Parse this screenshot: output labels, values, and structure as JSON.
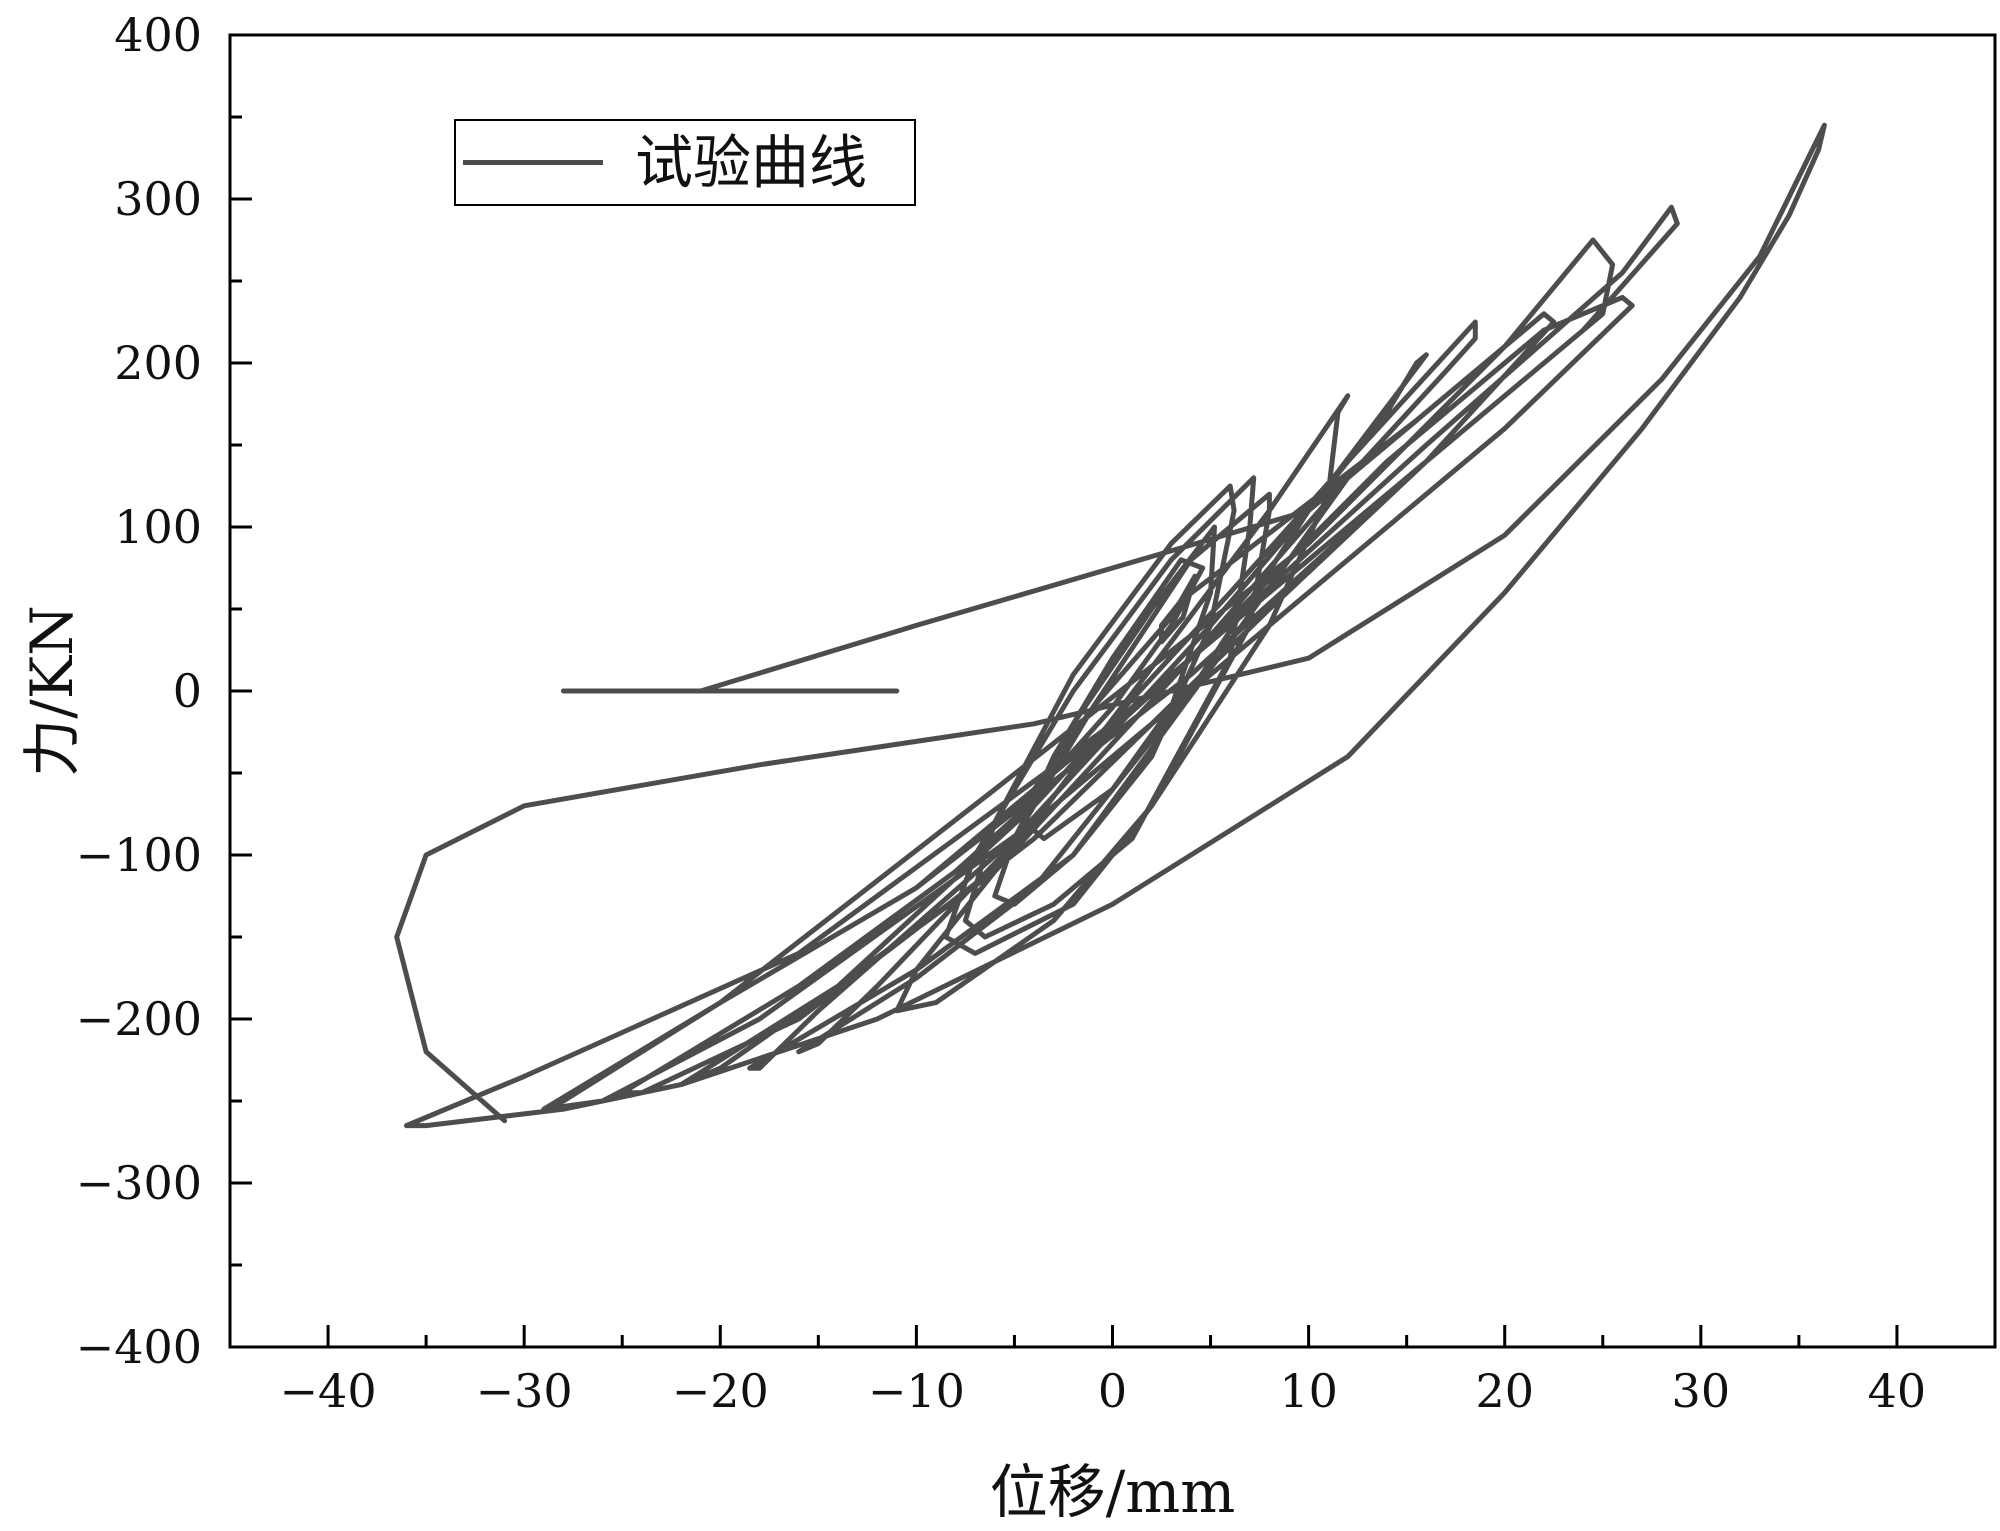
{
  "chart_data": {
    "type": "line",
    "title": "",
    "xlabel": "位移/mm",
    "ylabel": "力/KN",
    "xlim": [
      -45,
      45
    ],
    "ylim": [
      -400,
      400
    ],
    "x_ticks": [
      -40,
      -30,
      -20,
      -10,
      0,
      10,
      20,
      30,
      40
    ],
    "x_tick_labels": [
      "−40",
      "−30",
      "−20",
      "−10",
      "0",
      "10",
      "20",
      "30",
      "40"
    ],
    "y_ticks": [
      -400,
      -300,
      -200,
      -100,
      0,
      100,
      200,
      300,
      400
    ],
    "y_tick_labels": [
      "−400",
      "−300",
      "−200",
      "−100",
      "0",
      "100",
      "200",
      "300",
      "400"
    ],
    "grid": false,
    "legend_position": "top-left",
    "series_color": "#4d4d4d",
    "series": [
      {
        "name": "试验曲线",
        "x": [
          -28,
          -11,
          -21,
          -10,
          0,
          10,
          15.5,
          3.5,
          2.5,
          2.5,
          3.6,
          4.2,
          3,
          -1,
          -4,
          -5,
          -3,
          0,
          3,
          4.6,
          3.5,
          0,
          -3,
          -4.5,
          -3.5,
          0,
          3,
          5,
          5.2,
          2,
          -2,
          -5,
          -6,
          -5,
          -2,
          2,
          5,
          6.2,
          6,
          3,
          -2,
          -6,
          -7.5,
          -6.5,
          -3,
          1,
          6,
          7,
          7.2,
          3,
          -2,
          -7,
          -8.5,
          -7,
          -2,
          2,
          7,
          8,
          8,
          4,
          -1,
          -6,
          -10,
          -11,
          -9,
          -3,
          2,
          8,
          11,
          11.5,
          12,
          8,
          3,
          -4,
          -12,
          -15,
          -16,
          -10,
          -4,
          4,
          10,
          14,
          15.5,
          16,
          10,
          5,
          -5,
          -15,
          -18,
          -18.5,
          -10,
          -2,
          6,
          12,
          17,
          18.5,
          18.5,
          12,
          6,
          -4,
          -14,
          -20,
          -22,
          -14,
          -6,
          4,
          12,
          20,
          22,
          22.5,
          16,
          8,
          -4,
          -16,
          -24,
          -25,
          -16,
          -8,
          4,
          14,
          22,
          26,
          26.5,
          20,
          10,
          -4,
          -18,
          -26,
          -29,
          -20,
          -10,
          4,
          16,
          25,
          25.5,
          24.5,
          20,
          10,
          -6,
          -20,
          -28,
          -29,
          -20,
          -10,
          4,
          16,
          26,
          28.5,
          28.8,
          24,
          14,
          0,
          -16,
          -30,
          -36,
          -35,
          -28,
          -22,
          -12,
          0,
          12,
          20,
          27,
          32,
          34.5,
          36,
          36.3,
          33,
          28,
          20,
          10,
          -4,
          -18,
          -30,
          -35,
          -36.5,
          -35,
          -31
        ],
        "y": [
          0,
          0,
          0,
          40,
          75,
          110,
          165,
          55,
          40,
          30,
          45,
          70,
          45,
          -10,
          -60,
          -75,
          -50,
          -10,
          40,
          75,
          80,
          20,
          -40,
          -80,
          -90,
          -60,
          -10,
          60,
          100,
          50,
          -20,
          -90,
          -125,
          -130,
          -100,
          -40,
          40,
          110,
          125,
          90,
          10,
          -80,
          -140,
          -150,
          -130,
          -90,
          20,
          100,
          130,
          80,
          0,
          -100,
          -150,
          -160,
          -130,
          -70,
          40,
          110,
          120,
          80,
          -10,
          -110,
          -170,
          -195,
          -190,
          -140,
          -70,
          40,
          120,
          170,
          180,
          110,
          30,
          -80,
          -180,
          -215,
          -220,
          -175,
          -120,
          0,
          110,
          170,
          200,
          205,
          110,
          40,
          -90,
          -195,
          -230,
          -230,
          -170,
          -100,
          30,
          130,
          195,
          215,
          225,
          140,
          60,
          -70,
          -180,
          -230,
          -240,
          -180,
          -110,
          20,
          130,
          210,
          230,
          225,
          140,
          50,
          -90,
          -200,
          -245,
          -245,
          -180,
          -110,
          20,
          140,
          220,
          240,
          235,
          160,
          60,
          -80,
          -200,
          -250,
          -255,
          -190,
          -120,
          10,
          140,
          230,
          260,
          275,
          210,
          90,
          -60,
          -190,
          -250,
          -255,
          -190,
          -120,
          20,
          150,
          255,
          295,
          285,
          220,
          120,
          -20,
          -160,
          -235,
          -265,
          -265,
          -255,
          -240,
          -200,
          -130,
          -40,
          60,
          160,
          240,
          290,
          330,
          345,
          265,
          190,
          95,
          20,
          -20,
          -45,
          -70,
          -100,
          -150,
          -220,
          -262
        ]
      }
    ]
  }
}
